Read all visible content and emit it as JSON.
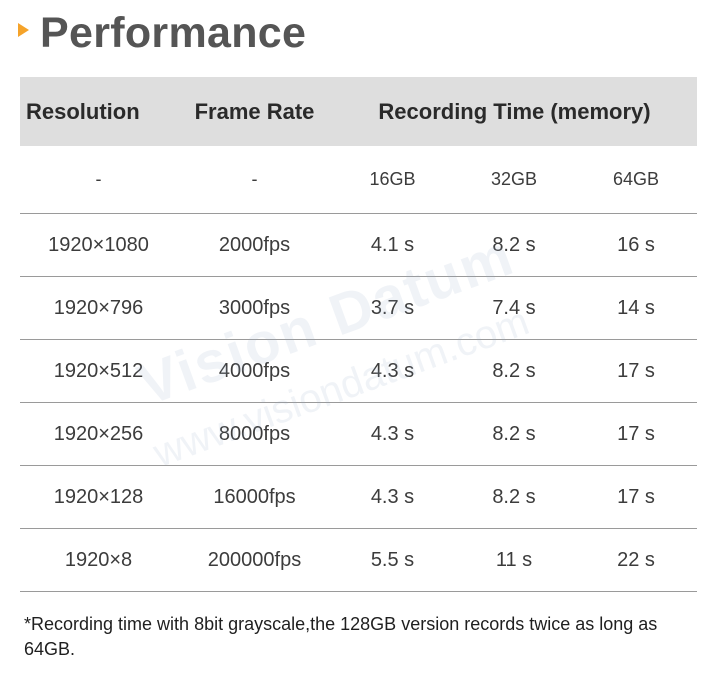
{
  "header": {
    "title": "Performance"
  },
  "table": {
    "headers": {
      "resolution": "Resolution",
      "frame_rate": "Frame Rate",
      "recording_time": "Recording Time (memory)"
    },
    "subheaders": [
      "-",
      "-",
      "16GB",
      "32GB",
      "64GB"
    ],
    "rows": [
      [
        "1920×1080",
        "2000fps",
        "4.1 s",
        "8.2 s",
        "16 s"
      ],
      [
        "1920×796",
        "3000fps",
        "3.7 s",
        "7.4 s",
        "14 s"
      ],
      [
        "1920×512",
        "4000fps",
        "4.3 s",
        "8.2 s",
        "17 s"
      ],
      [
        "1920×256",
        "8000fps",
        "4.3 s",
        "8.2 s",
        "17 s"
      ],
      [
        "1920×128",
        "16000fps",
        "4.3 s",
        "8.2 s",
        "17 s"
      ],
      [
        "1920×8",
        "200000fps",
        "5.5 s",
        "11 s",
        "22 s"
      ]
    ]
  },
  "footnote": "*Recording time with 8bit grayscale,the 128GB version records twice as long as 64GB.",
  "watermark": {
    "line1": "Vision Datum",
    "line2": "www.visiondatum.com"
  },
  "colors": {
    "accent": "#f5a32a",
    "header_bg": "#dedede",
    "title": "#555555"
  }
}
